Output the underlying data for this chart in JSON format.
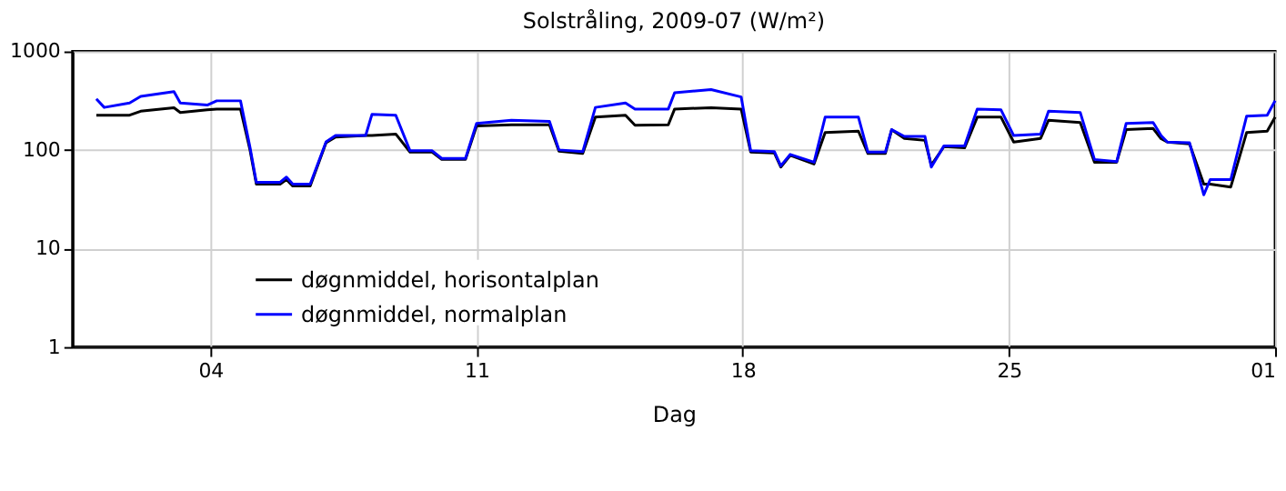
{
  "chart_data": {
    "type": "line",
    "title": "Solstråling, 2009-07 (W/m²)",
    "xlabel": "Dag",
    "x": [
      "2009-07-01T00:00",
      "2009-07-01T05:00",
      "2009-07-01T21:00",
      "2009-07-02T04:00",
      "2009-07-03T01:00",
      "2009-07-03T05:00",
      "2009-07-03T22:00",
      "2009-07-04T04:00",
      "2009-07-04T19:00",
      "2009-07-05T01:00",
      "2009-07-05T05:00",
      "2009-07-05T20:00",
      "2009-07-06T00:00",
      "2009-07-06T04:00",
      "2009-07-06T15:00",
      "2009-07-07T01:00",
      "2009-07-07T07:00",
      "2009-07-08T02:00",
      "2009-07-08T06:00",
      "2009-07-08T21:00",
      "2009-07-09T06:00",
      "2009-07-09T20:00",
      "2009-07-10T02:00",
      "2009-07-10T17:00",
      "2009-07-11T00:00",
      "2009-07-11T22:00",
      "2009-07-12T22:00",
      "2009-07-13T04:00",
      "2009-07-13T19:00",
      "2009-07-14T03:00",
      "2009-07-14T22:00",
      "2009-07-15T04:00",
      "2009-07-16T01:00",
      "2009-07-16T05:00",
      "2009-07-17T04:00",
      "2009-07-17T23:00",
      "2009-07-18T05:00",
      "2009-07-18T20:00",
      "2009-07-19T00:00",
      "2009-07-19T06:00",
      "2009-07-19T21:00",
      "2009-07-20T04:00",
      "2009-07-21T01:00",
      "2009-07-21T07:00",
      "2009-07-21T18:00",
      "2009-07-21T22:00",
      "2009-07-22T06:00",
      "2009-07-22T19:00",
      "2009-07-22T23:00",
      "2009-07-23T07:00",
      "2009-07-23T20:00",
      "2009-07-24T04:00",
      "2009-07-24T19:00",
      "2009-07-25T03:00",
      "2009-07-25T20:00",
      "2009-07-26T01:00",
      "2009-07-26T21:00",
      "2009-07-27T06:00",
      "2009-07-27T20:00",
      "2009-07-28T02:00",
      "2009-07-28T19:00",
      "2009-07-29T00:00",
      "2009-07-29T04:00",
      "2009-07-29T18:00",
      "2009-07-30T03:00",
      "2009-07-30T07:00",
      "2009-07-30T20:00",
      "2009-07-31T06:00",
      "2009-07-31T19:00",
      "2009-08-01T00:00"
    ],
    "series": [
      {
        "name": "døgnmiddel, horisontalplan",
        "color": "#000000",
        "values": [
          225,
          225,
          225,
          247,
          268,
          240,
          255,
          260,
          260,
          100,
          45,
          45,
          50,
          43,
          43,
          118,
          135,
          140,
          140,
          145,
          95,
          95,
          80,
          80,
          175,
          180,
          180,
          97,
          92,
          215,
          225,
          178,
          180,
          260,
          268,
          260,
          95,
          93,
          67,
          88,
          72,
          150,
          155,
          92,
          92,
          160,
          131,
          125,
          70,
          108,
          105,
          215,
          215,
          120,
          131,
          200,
          190,
          75,
          75,
          161,
          165,
          130,
          120,
          115,
          45,
          45,
          42,
          150,
          155,
          215
        ]
      },
      {
        "name": "døgnmiddel, normalplan",
        "color": "#0000ff",
        "values": [
          330,
          270,
          300,
          350,
          390,
          300,
          285,
          315,
          315,
          106,
          47,
          47,
          53,
          45,
          45,
          121,
          140,
          140,
          230,
          225,
          98,
          98,
          82,
          82,
          186,
          200,
          195,
          100,
          96,
          270,
          300,
          260,
          260,
          380,
          410,
          345,
          98,
          96,
          69,
          90,
          75,
          215,
          215,
          95,
          95,
          161,
          137,
          137,
          67,
          110,
          110,
          260,
          255,
          140,
          145,
          247,
          240,
          80,
          76,
          186,
          190,
          140,
          120,
          118,
          35,
          50,
          50,
          220,
          225,
          316
        ]
      }
    ],
    "xlim": [
      "2009-06-30T09:00",
      "2009-08-01T00:00"
    ],
    "xticks": [
      {
        "value": "2009-07-04",
        "label": "04"
      },
      {
        "value": "2009-07-11",
        "label": "11"
      },
      {
        "value": "2009-07-18",
        "label": "18"
      },
      {
        "value": "2009-07-25",
        "label": "25"
      },
      {
        "value": "2009-08-01",
        "label": "01"
      }
    ],
    "ylim": [
      1,
      1000
    ],
    "yticks": [
      1,
      10,
      100,
      1000
    ],
    "log": true,
    "grid": true,
    "legend": "bottom left",
    "marker": "none",
    "line_style": "solid"
  }
}
